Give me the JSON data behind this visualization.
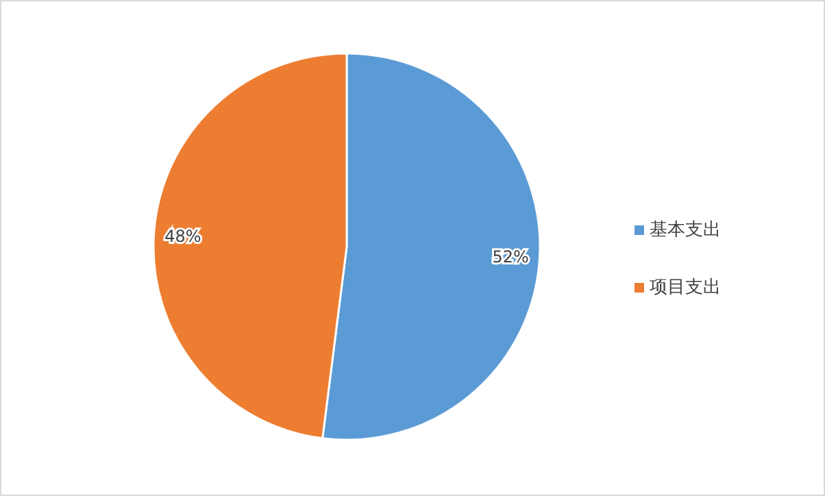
{
  "chart_data": {
    "type": "pie",
    "categories": [
      "基本支出",
      "项目支出"
    ],
    "values": [
      52,
      48
    ],
    "colors": [
      "#5b9bd5",
      "#ed7d31"
    ],
    "value_labels": [
      "52%",
      "48%"
    ],
    "legend": "right"
  }
}
